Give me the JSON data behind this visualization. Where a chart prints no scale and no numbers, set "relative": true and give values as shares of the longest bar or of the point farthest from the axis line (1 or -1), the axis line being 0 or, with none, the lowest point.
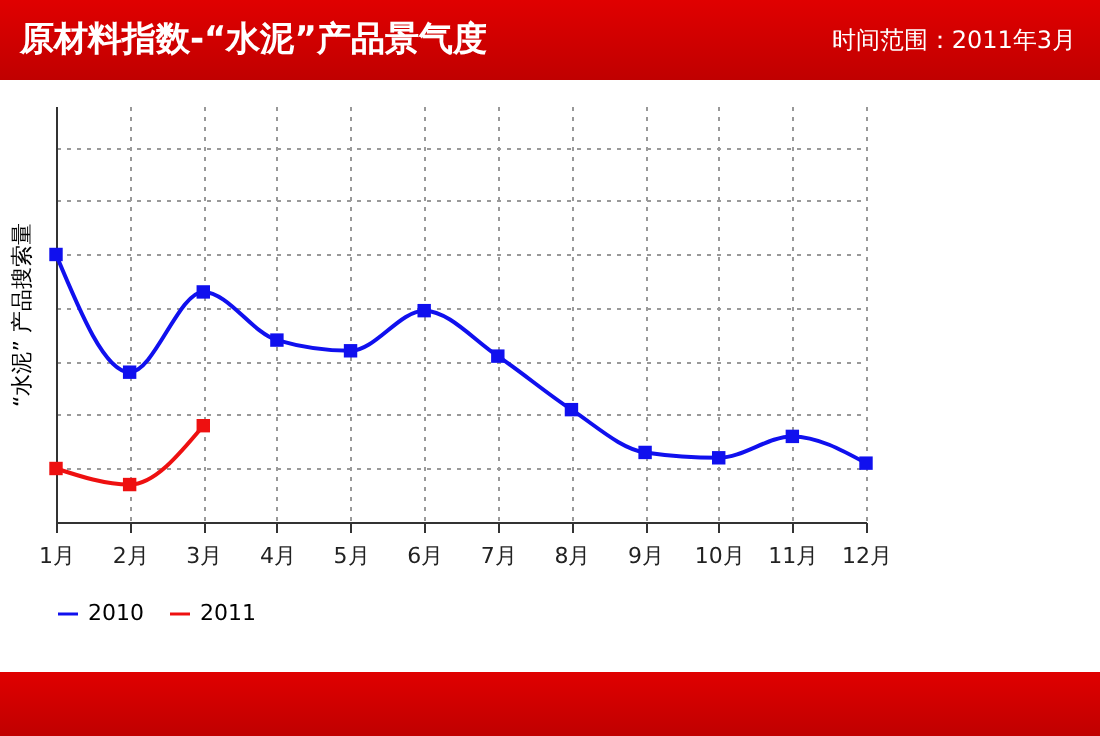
{
  "chart_data": {
    "type": "line",
    "title": "原材料指数-“水泥”产品景气度",
    "subtitle": "时间范围：2011年3月",
    "ylabel": "“水泥” 产品搜索量",
    "relative": true,
    "categories": [
      "1月",
      "2月",
      "3月",
      "4月",
      "5月",
      "6月",
      "7月",
      "8月",
      "9月",
      "10月",
      "11月",
      "12月"
    ],
    "series": [
      {
        "name": "2010",
        "color": "#1010ee",
        "values": [
          1,
          0.56,
          0.86,
          0.68,
          0.64,
          0.79,
          0.62,
          0.42,
          0.26,
          0.24,
          0.32,
          0.22
        ]
      },
      {
        "name": "2011",
        "color": "#ee1010",
        "values": [
          0.2,
          0.14,
          0.36,
          null,
          null,
          null,
          null,
          null,
          null,
          null,
          null,
          null
        ]
      }
    ],
    "grid": true,
    "legend": "bottom",
    "marker": "square",
    "line_style": "solid"
  }
}
